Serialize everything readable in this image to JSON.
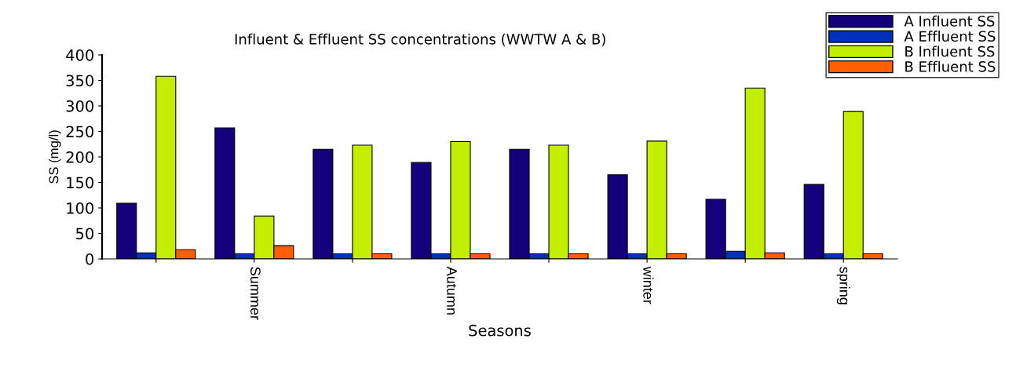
{
  "chart_data": {
    "type": "bar",
    "title": "Influent & Effluent SS concentrations (WWTW A & B)",
    "xlabel": "Seasons",
    "ylabel": "SS (mg/l)",
    "categories": [
      null,
      "Summer",
      null,
      "Autumn",
      null,
      "winter",
      null,
      "spring"
    ],
    "series": [
      {
        "name": "A Influent SS",
        "color": "#12017a",
        "values": [
          109,
          257,
          215,
          189,
          215,
          165,
          117,
          146
        ]
      },
      {
        "name": "A Effluent SS",
        "color": "#0030bd",
        "values": [
          12,
          10,
          10,
          10,
          10,
          10,
          15,
          10
        ]
      },
      {
        "name": "B Influent SS",
        "color": "#c4ee00",
        "values": [
          358,
          84,
          223,
          230,
          223,
          231,
          335,
          289
        ]
      },
      {
        "name": "B Effluent SS",
        "color": "#ff5f00",
        "values": [
          18,
          26,
          10,
          10,
          10,
          10,
          12,
          10
        ]
      }
    ],
    "ylim": [
      0,
      400
    ],
    "yticks": [
      0,
      50,
      100,
      150,
      200,
      250,
      300,
      350,
      400
    ],
    "grid": false,
    "legend": "top right"
  }
}
